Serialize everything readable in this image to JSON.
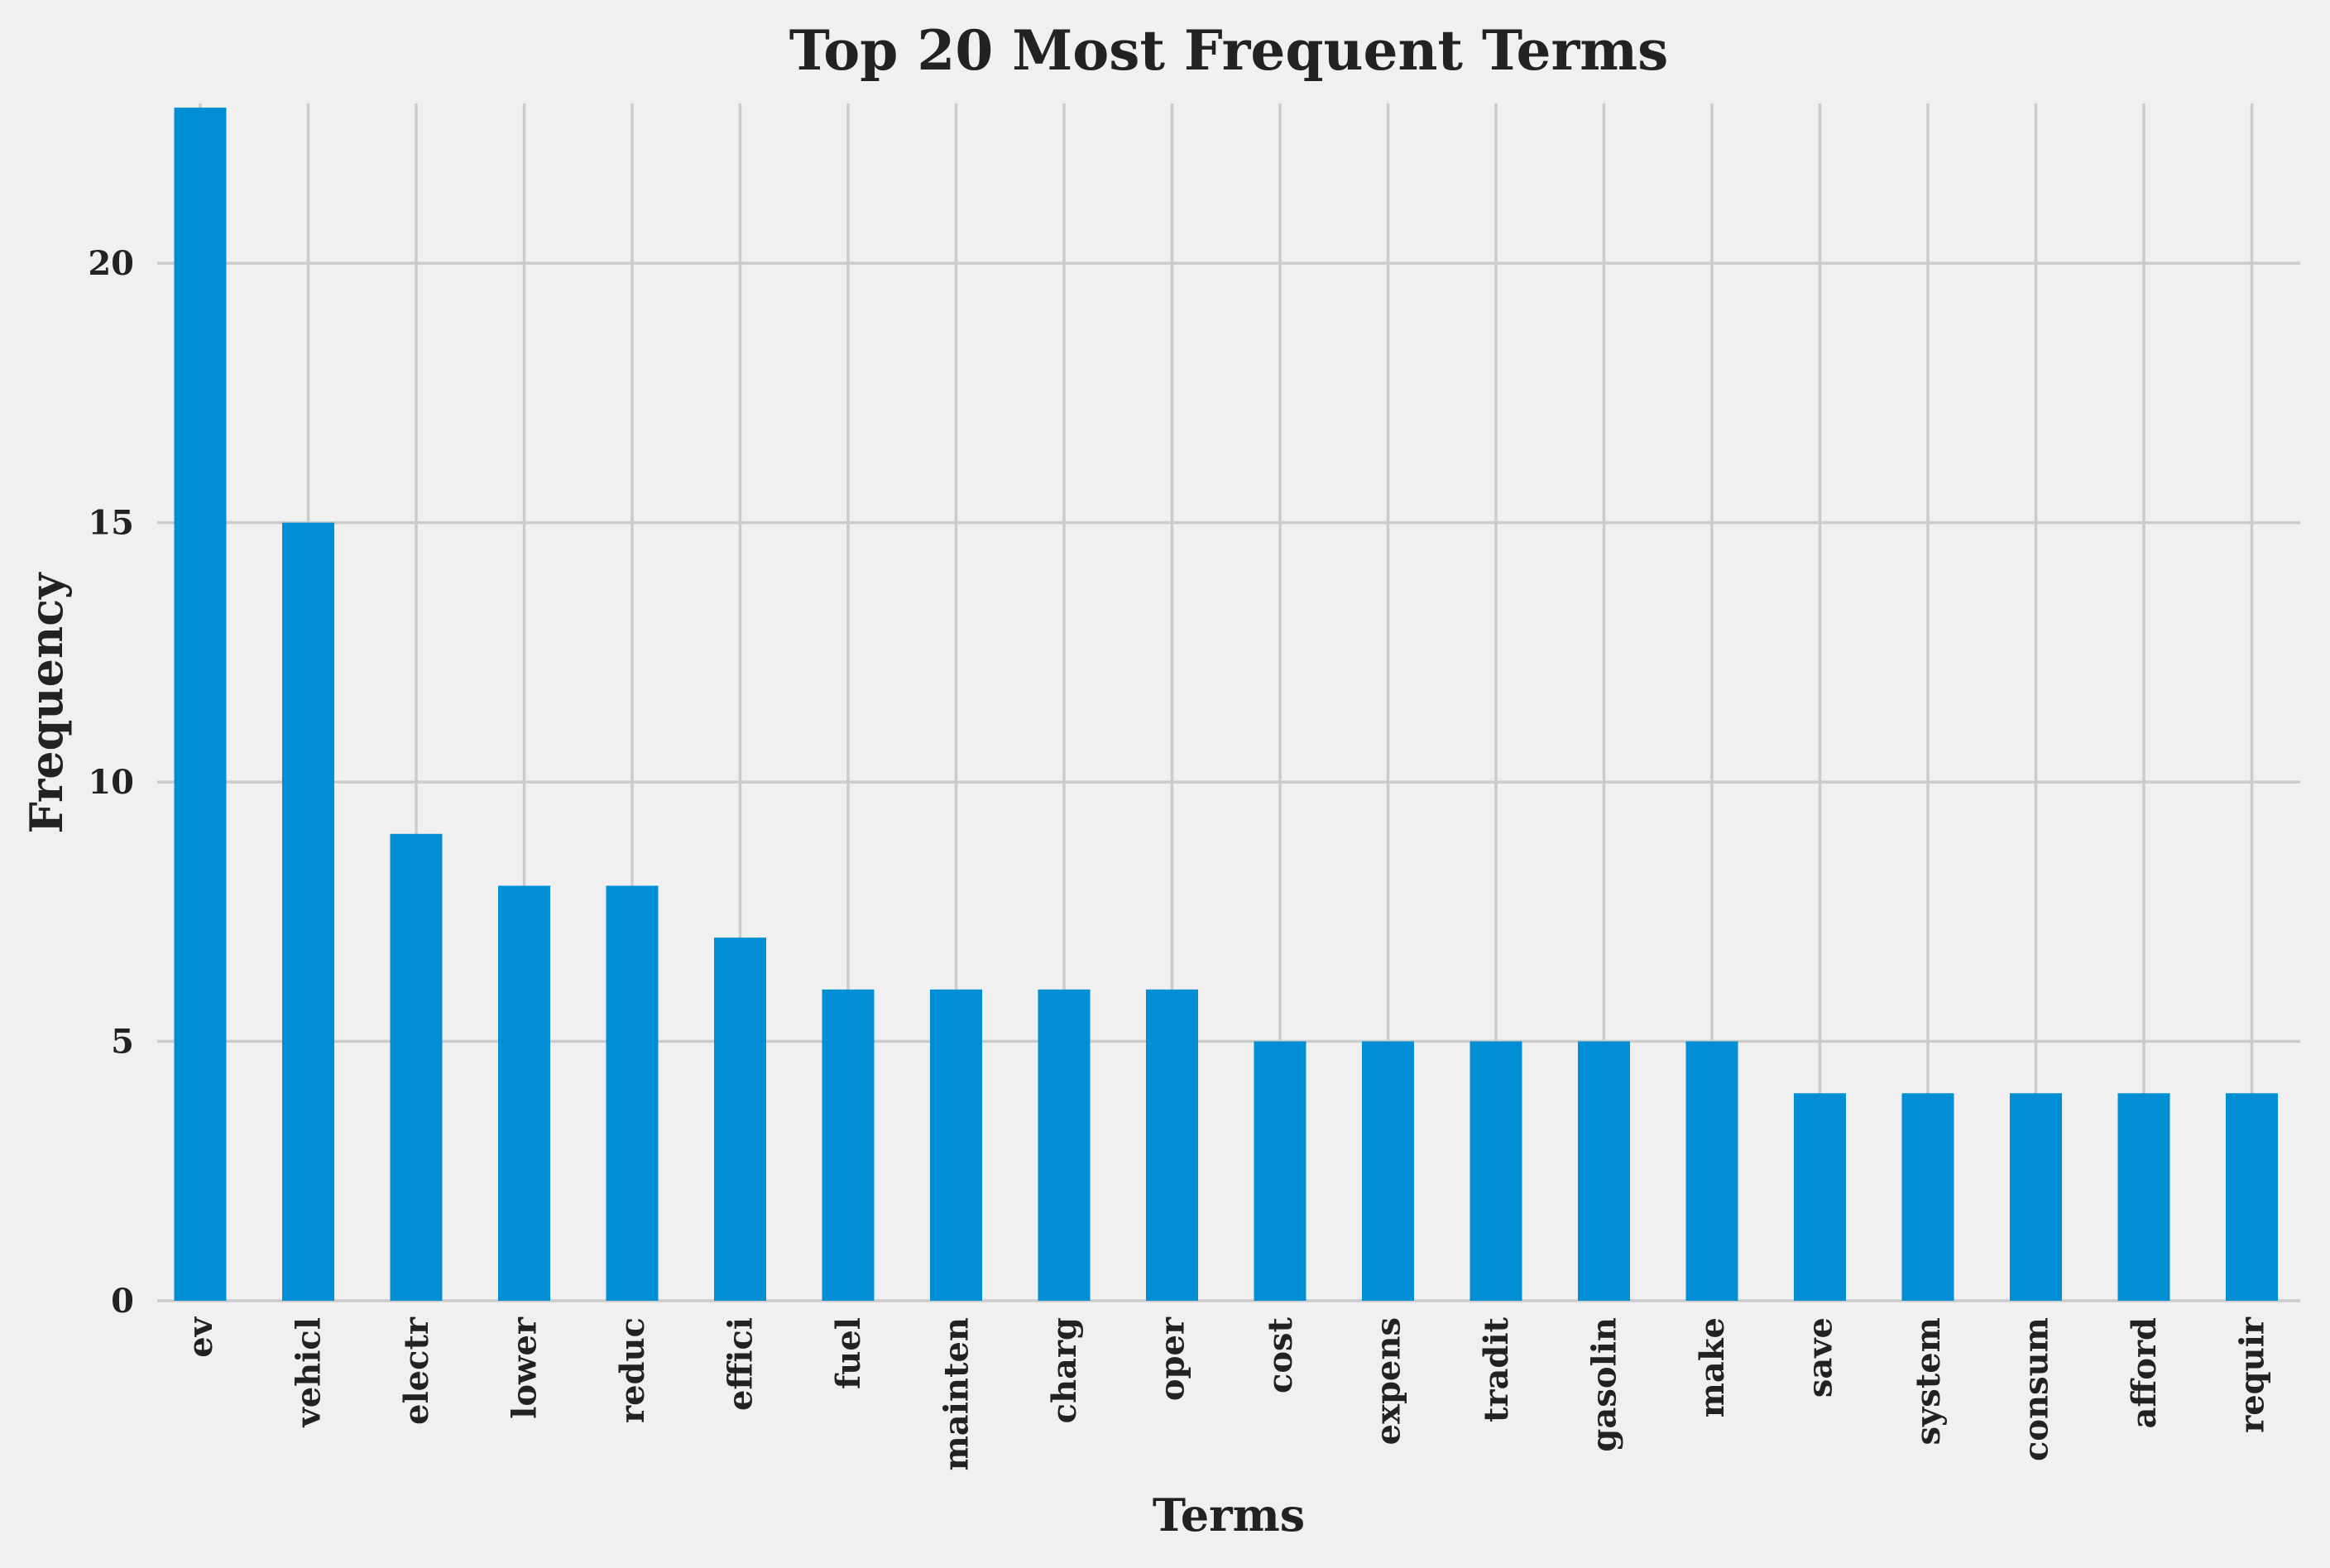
{
  "chart_data": {
    "type": "bar",
    "title": "Top 20 Most Frequent Terms",
    "xlabel": "Terms",
    "ylabel": "Frequency",
    "categories": [
      "ev",
      "vehicl",
      "electr",
      "lower",
      "reduc",
      "effici",
      "fuel",
      "mainten",
      "charg",
      "oper",
      "cost",
      "expens",
      "tradit",
      "gasolin",
      "make",
      "save",
      "system",
      "consum",
      "afford",
      "requir"
    ],
    "values": [
      23,
      15,
      9,
      8,
      8,
      7,
      6,
      6,
      6,
      6,
      5,
      5,
      5,
      5,
      5,
      4,
      4,
      4,
      4,
      4
    ],
    "ylim": [
      0,
      24.15
    ],
    "yticks": [
      "0",
      "5",
      "10",
      "15",
      "20"
    ],
    "grid": true,
    "bar_color": "#008fd5",
    "background_color": "#f0f0f0",
    "grid_color": "#cbcbcb"
  }
}
